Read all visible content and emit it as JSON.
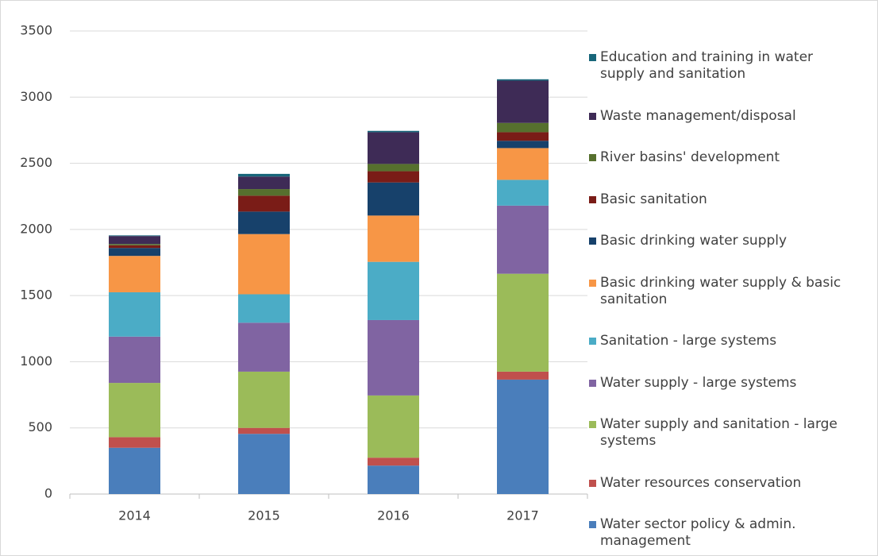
{
  "chart_data": {
    "type": "stacked_bar",
    "categories": [
      "2014",
      "2015",
      "2016",
      "2017"
    ],
    "ylim": [
      0,
      3500
    ],
    "yticks": [
      0,
      500,
      1000,
      1500,
      2000,
      2500,
      3000,
      3500
    ],
    "grid": true,
    "legend": "right",
    "series": [
      {
        "name": "Water sector policy & admin. management",
        "color": "#4a7ebb",
        "values": [
          350,
          455,
          215,
          865
        ]
      },
      {
        "name": "Water resources conservation",
        "color": "#c0504d",
        "values": [
          80,
          45,
          60,
          60
        ]
      },
      {
        "name": "Water supply and sanitation - large systems",
        "color": "#9bbb59",
        "values": [
          410,
          425,
          470,
          740
        ]
      },
      {
        "name": "Water supply - large systems",
        "color": "#8064a2",
        "values": [
          350,
          370,
          570,
          515
        ]
      },
      {
        "name": "Sanitation - large systems",
        "color": "#4bacc6",
        "values": [
          335,
          215,
          440,
          195
        ]
      },
      {
        "name": "Basic drinking water supply & basic sanitation",
        "color": "#f79646",
        "values": [
          275,
          455,
          350,
          240
        ]
      },
      {
        "name": "Basic drinking water supply",
        "color": "#17416b",
        "values": [
          60,
          170,
          250,
          55
        ]
      },
      {
        "name": "Basic sanitation",
        "color": "#7a1c17",
        "values": [
          20,
          120,
          85,
          65
        ]
      },
      {
        "name": "River basins' development",
        "color": "#56702e",
        "values": [
          10,
          50,
          55,
          70
        ]
      },
      {
        "name": "Waste management/disposal",
        "color": "#3e2b56",
        "values": [
          60,
          95,
          240,
          320
        ]
      },
      {
        "name": "Education and training in water supply and sanitation",
        "color": "#17667a",
        "values": [
          5,
          20,
          10,
          10
        ]
      }
    ]
  }
}
